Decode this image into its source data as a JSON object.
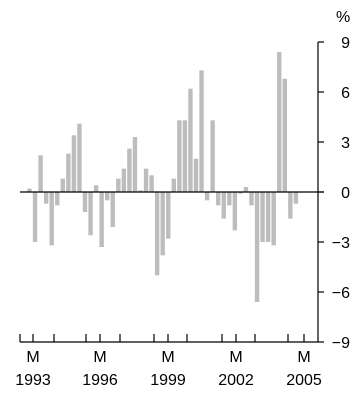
{
  "chart_data": {
    "type": "bar",
    "unit": "%",
    "ylim": [
      -9,
      9
    ],
    "y_ticks": [
      9,
      6,
      3,
      0,
      -3,
      -6,
      -9
    ],
    "y_tick_labels": [
      "9",
      "6",
      "3",
      "0",
      "−3",
      "−6",
      "−9"
    ],
    "x_tick_top_labels": [
      "M",
      "M",
      "M",
      "M",
      "M"
    ],
    "x_tick_bottom_labels": [
      "1993",
      "1996",
      "1999",
      "2002",
      "2005"
    ],
    "grid": false,
    "legend": "none",
    "colors": {
      "bar": "#bdbdbd",
      "axis": "#000000",
      "zero_line": "#000000"
    },
    "series": [
      {
        "values": [
          0.2,
          -3.0,
          2.2,
          -0.7,
          -3.2,
          -0.8,
          0.8,
          2.3,
          3.4,
          4.1,
          -1.2,
          -2.6,
          0.4,
          -3.3,
          -0.5,
          -2.1,
          0.8,
          1.4,
          2.6,
          3.3,
          0.1,
          1.4,
          1.0,
          -5.0,
          -3.8,
          -2.8,
          0.8,
          4.3,
          4.3,
          6.2,
          2.0,
          7.3,
          -0.5,
          4.3,
          -0.8,
          -1.6,
          -0.8,
          -2.3,
          -0.1,
          0.3,
          -0.8,
          -6.6,
          -3.0,
          -3.0,
          -3.2,
          8.4,
          6.8,
          -1.6,
          -0.7
        ]
      }
    ]
  }
}
